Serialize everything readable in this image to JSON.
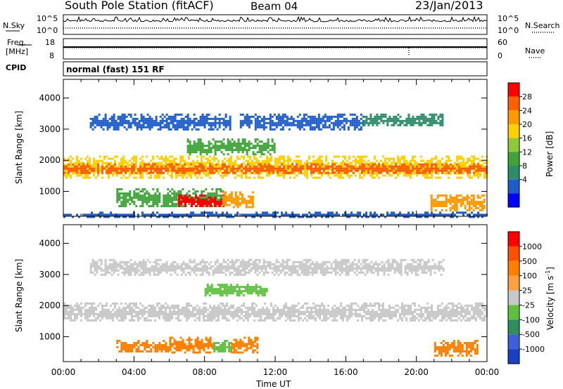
{
  "header": {
    "title": "South Pole Station (fitACF)",
    "beam": "Beam 04",
    "date": "23/Jan/2013"
  },
  "top_panels": {
    "nsky_label": "N.Sky",
    "nsky_ticks": [
      "10^5",
      "10^0"
    ],
    "nsearch_label": "N.Search",
    "nsearch_ticks": [
      "10^5",
      "10^0"
    ],
    "freq_label": "Freq.",
    "freq_unit": "[MHz]",
    "freq_ticks": [
      "18",
      "8"
    ],
    "nave_label": "Nave",
    "nave_ticks": [
      "60",
      "0"
    ],
    "cpid_label": "CPID",
    "cpid_value": "normal (fast) 151 RF"
  },
  "colors": {
    "power_scale": [
      "#0000ff",
      "#1e5cc8",
      "#2f8c6a",
      "#3fa33a",
      "#8fc93a",
      "#ffd000",
      "#ff9a00",
      "#ff6000",
      "#ff0000"
    ],
    "velocity_scale": [
      "#1a3fc0",
      "#3f5fd8",
      "#2f8f5a",
      "#5fc040",
      "#c8c8c8",
      "#ffa040",
      "#ff8000",
      "#ff5000",
      "#ff0000"
    ]
  },
  "chart_data": [
    {
      "type": "heatmap",
      "name": "Power",
      "ylabel": "Slant Range [km]",
      "ylim": [
        200,
        4600
      ],
      "yticks": [
        "1000",
        "2000",
        "3000",
        "4000"
      ],
      "xlim": [
        0,
        24
      ],
      "colorbar_label": "Power [dB]",
      "colorbar_ticks": [
        "28",
        "24",
        "20",
        "16",
        "12",
        "8",
        "4"
      ],
      "bands": [
        {
          "x0": 0,
          "x1": 24,
          "y0": 1450,
          "y1": 2150,
          "level": 5
        },
        {
          "x0": 0,
          "x1": 24,
          "y0": 1600,
          "y1": 1900,
          "level": 7
        },
        {
          "x0": 1.5,
          "x1": 9.5,
          "y0": 3000,
          "y1": 3500,
          "level": 1
        },
        {
          "x0": 10,
          "x1": 17,
          "y0": 3000,
          "y1": 3500,
          "level": 1
        },
        {
          "x0": 17,
          "x1": 21.5,
          "y0": 3100,
          "y1": 3500,
          "level": 2
        },
        {
          "x0": 7,
          "x1": 12,
          "y0": 2200,
          "y1": 2700,
          "level": 3
        },
        {
          "x0": 3,
          "x1": 9,
          "y0": 500,
          "y1": 1100,
          "level": 3
        },
        {
          "x0": 6.5,
          "x1": 9.2,
          "y0": 500,
          "y1": 900,
          "level": 8
        },
        {
          "x0": 9,
          "x1": 10.7,
          "y0": 500,
          "y1": 1000,
          "level": 6
        },
        {
          "x0": 20.8,
          "x1": 23.8,
          "y0": 400,
          "y1": 900,
          "level": 6
        },
        {
          "x0": 0,
          "x1": 24,
          "y0": 200,
          "y1": 350,
          "level": 1
        }
      ]
    },
    {
      "type": "heatmap",
      "name": "Velocity",
      "ylabel": "Slant Range [km]",
      "xlabel": "Time UT",
      "ylim": [
        200,
        4600
      ],
      "yticks": [
        "1000",
        "2000",
        "3000",
        "4000"
      ],
      "xlim": [
        0,
        24
      ],
      "xticks": [
        "00:00",
        "04:00",
        "08:00",
        "12:00",
        "16:00",
        "20:00",
        "00:00"
      ],
      "colorbar_label": "Velocity [m s^-1]",
      "colorbar_ticks": [
        "1000",
        "500",
        "100",
        "25",
        "-25",
        "-100",
        "-500",
        "-1000"
      ],
      "bands": [
        {
          "x0": 0,
          "x1": 24,
          "y0": 1500,
          "y1": 2100,
          "level": 4
        },
        {
          "x0": 1.5,
          "x1": 21.5,
          "y0": 3000,
          "y1": 3500,
          "level": 4
        },
        {
          "x0": 8,
          "x1": 11.5,
          "y0": 2300,
          "y1": 2700,
          "level": 3
        },
        {
          "x0": 3,
          "x1": 6,
          "y0": 500,
          "y1": 900,
          "level": 6
        },
        {
          "x0": 6,
          "x1": 8.5,
          "y0": 500,
          "y1": 1000,
          "level": 6
        },
        {
          "x0": 8.5,
          "x1": 9.5,
          "y0": 500,
          "y1": 900,
          "level": 3
        },
        {
          "x0": 9.5,
          "x1": 11,
          "y0": 500,
          "y1": 1000,
          "level": 6
        },
        {
          "x0": 21,
          "x1": 23.5,
          "y0": 400,
          "y1": 900,
          "level": 6
        }
      ]
    }
  ]
}
